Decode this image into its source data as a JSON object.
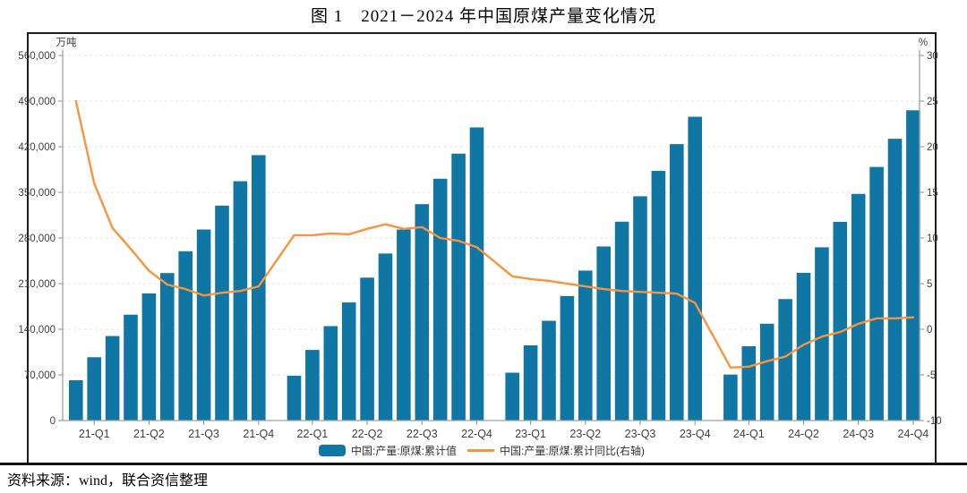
{
  "figure": {
    "title": "图 1　2021－2024 年中国原煤产量变化情况",
    "source_note": "资料来源：wind，联合资信整理"
  },
  "chart_data": {
    "type": "combo (bar + line, dual axis)",
    "title": "图 1　2021－2024 年中国原煤产量变化情况",
    "left_axis": {
      "unit": "万吨",
      "min": 0,
      "max": 560000,
      "step": 70000,
      "tick_labels": [
        "0",
        "70,000",
        "140,000",
        "210,000",
        "280,000",
        "350,000",
        "420,000",
        "490,000",
        "560,000"
      ]
    },
    "right_axis": {
      "unit": "%",
      "min": -10,
      "max": 30,
      "step": 5,
      "tick_labels": [
        "-10",
        "-5",
        "0",
        "5",
        "10",
        "15",
        "20",
        "25",
        "30"
      ]
    },
    "x_tick_labels": [
      "21-Q1",
      "21-Q2",
      "21-Q3",
      "21-Q4",
      "22-Q1",
      "22-Q2",
      "22-Q3",
      "22-Q4",
      "23-Q1",
      "23-Q2",
      "23-Q3",
      "23-Q4",
      "24-Q1",
      "24-Q2",
      "24-Q3",
      "24-Q4"
    ],
    "grid": "horizontal dashed",
    "legend_position": "bottom center",
    "groups": 4,
    "bars_per_group": 11,
    "legend": [
      {
        "type": "bar",
        "label": "中国:产量:原煤:累计值",
        "color": "#1076A4"
      },
      {
        "type": "line",
        "label": "中国:产量:原煤:累计同比(右轴)",
        "color": "#F7943C"
      }
    ],
    "series": [
      {
        "name": "中国:产量:原煤:累计值",
        "type": "bar",
        "axis": "left",
        "values": [
          61800,
          97100,
          129600,
          162400,
          195000,
          226200,
          259700,
          293000,
          329700,
          367100,
          407100,
          68700,
          108300,
          144800,
          181100,
          219200,
          256200,
          293000,
          331900,
          370900,
          409400,
          449600,
          73400,
          115300,
          153000,
          191000,
          230000,
          267000,
          305000,
          344000,
          383000,
          424000,
          466000,
          70500,
          113900,
          148500,
          186300,
          226600,
          265700,
          304800,
          347600,
          389000,
          432200,
          475900
        ]
      },
      {
        "name": "中国:产量:原煤:累计同比(右轴)",
        "type": "line",
        "axis": "right",
        "values": [
          25.0,
          16.0,
          11.1,
          8.8,
          6.4,
          4.9,
          4.4,
          3.7,
          4.0,
          4.2,
          4.7,
          10.3,
          10.3,
          10.5,
          10.4,
          11.0,
          11.5,
          11.0,
          11.2,
          10.0,
          9.7,
          9.0,
          5.8,
          5.5,
          5.3,
          5.0,
          4.7,
          4.4,
          4.2,
          4.1,
          4.0,
          3.9,
          2.9,
          -4.2,
          -4.1,
          -3.5,
          -3.0,
          -1.7,
          -0.8,
          -0.3,
          0.6,
          1.2,
          1.2,
          1.3
        ]
      }
    ],
    "colors": {
      "bar": "#1076A4",
      "line": "#F7943C",
      "grid": "#E4E4E4",
      "axis": "#A0A0A0",
      "tick_text": "#3F3F3F"
    }
  }
}
